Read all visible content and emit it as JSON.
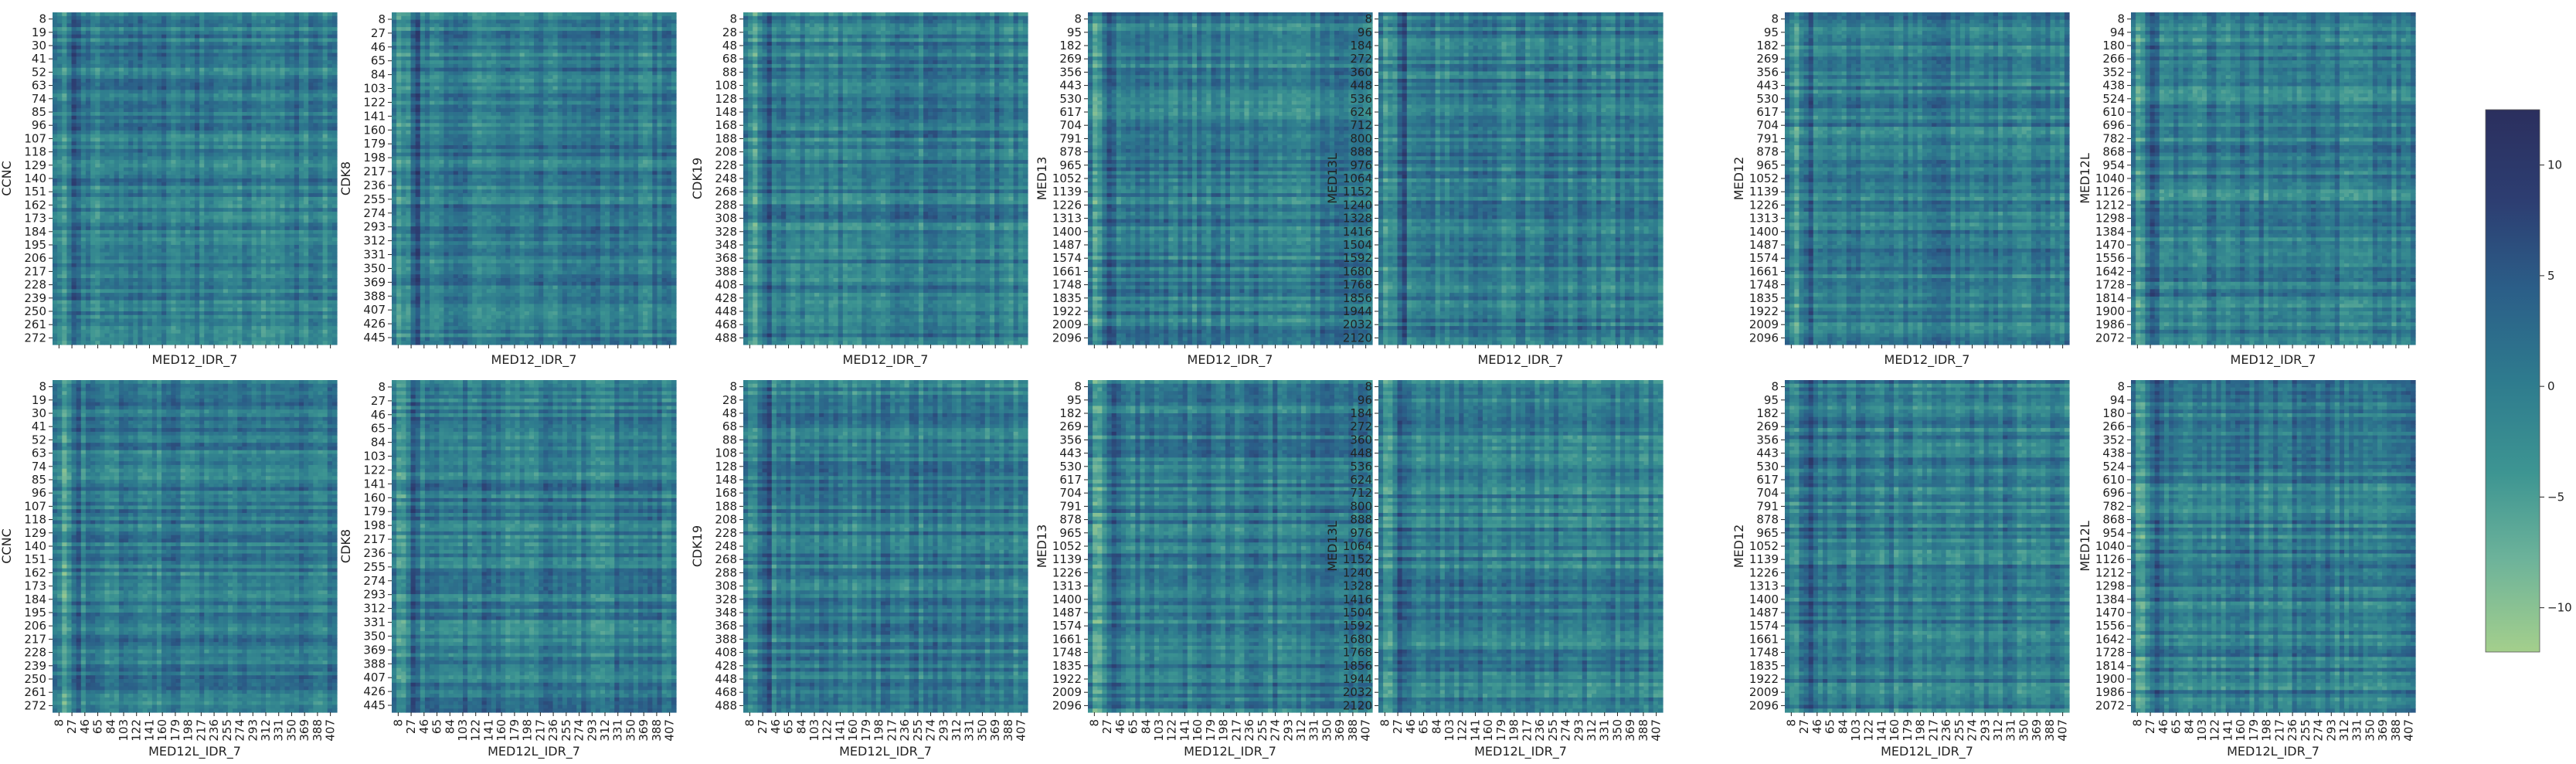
{
  "chart_data": {
    "type": "heatmap",
    "colormap": [
      "#a4cf8c",
      "#6db39a",
      "#3d9592",
      "#2e7b8e",
      "#2b5e88",
      "#2d3e72",
      "#2b2f5e"
    ],
    "colorbar": {
      "range": [
        -12,
        12.5
      ],
      "ticks": [
        "10",
        "5",
        "0",
        "−5",
        "−10"
      ],
      "tick_values": [
        10,
        5,
        0,
        -5,
        -10
      ]
    },
    "columns": [
      {
        "ylabel": "CCNC",
        "yticks": [
          "8",
          "19",
          "30",
          "41",
          "52",
          "63",
          "74",
          "85",
          "96",
          "107",
          "118",
          "129",
          "140",
          "151",
          "162",
          "173",
          "184",
          "195",
          "206",
          "217",
          "228",
          "239",
          "250",
          "261",
          "272"
        ]
      },
      {
        "ylabel": "CDK8",
        "yticks": [
          "8",
          "27",
          "46",
          "65",
          "84",
          "103",
          "122",
          "141",
          "160",
          "179",
          "198",
          "217",
          "236",
          "255",
          "274",
          "293",
          "312",
          "331",
          "350",
          "369",
          "388",
          "407",
          "426",
          "445"
        ]
      },
      {
        "ylabel": "CDK19",
        "yticks": [
          "8",
          "28",
          "48",
          "68",
          "88",
          "108",
          "128",
          "148",
          "168",
          "188",
          "208",
          "228",
          "248",
          "268",
          "288",
          "308",
          "328",
          "348",
          "368",
          "388",
          "408",
          "428",
          "448",
          "468",
          "488"
        ]
      },
      {
        "ylabel": "MED13",
        "yticks": [
          "8",
          "95",
          "182",
          "269",
          "356",
          "443",
          "530",
          "617",
          "704",
          "791",
          "878",
          "965",
          "1052",
          "1139",
          "1226",
          "1313",
          "1400",
          "1487",
          "1574",
          "1661",
          "1748",
          "1835",
          "1922",
          "2009",
          "2096"
        ]
      },
      {
        "ylabel": "MED13L",
        "yticks": [
          "8",
          "96",
          "184",
          "272",
          "360",
          "448",
          "536",
          "624",
          "712",
          "800",
          "888",
          "976",
          "1064",
          "1152",
          "1240",
          "1328",
          "1416",
          "1504",
          "1592",
          "1680",
          "1768",
          "1856",
          "1944",
          "2032",
          "2120"
        ]
      },
      {
        "ylabel": "MED12",
        "yticks": [
          "8",
          "95",
          "182",
          "269",
          "356",
          "443",
          "530",
          "617",
          "704",
          "791",
          "878",
          "965",
          "1052",
          "1139",
          "1226",
          "1313",
          "1400",
          "1487",
          "1574",
          "1661",
          "1748",
          "1835",
          "1922",
          "2009",
          "2096"
        ]
      },
      {
        "ylabel": "MED12L",
        "yticks": [
          "8",
          "94",
          "180",
          "266",
          "352",
          "438",
          "524",
          "610",
          "696",
          "782",
          "868",
          "954",
          "1040",
          "1126",
          "1212",
          "1298",
          "1384",
          "1470",
          "1556",
          "1642",
          "1728",
          "1814",
          "1900",
          "1986",
          "2072"
        ]
      }
    ],
    "rows": [
      {
        "xlabel": "MED12_IDR_7",
        "xticks_shown": false
      },
      {
        "xlabel": "MED12L_IDR_7",
        "xticks_shown": true,
        "xticks": [
          "8",
          "27",
          "46",
          "65",
          "84",
          "103",
          "122",
          "141",
          "160",
          "179",
          "198",
          "217",
          "236",
          "255",
          "274",
          "293",
          "312",
          "331",
          "350",
          "369",
          "388",
          "407"
        ]
      }
    ],
    "grid": false,
    "legend": "colorbar-right"
  }
}
